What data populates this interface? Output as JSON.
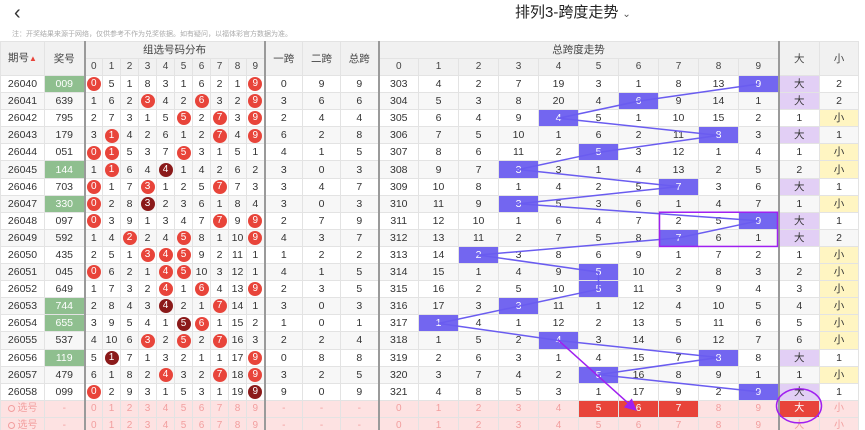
{
  "header": {
    "back_icon": "chevron-left-icon",
    "title": "排列3-跨度走势",
    "title_chevron_icon": "chevron-down-icon"
  },
  "notice": "注：开奖结果来源于网络，仅供参考不作为兑奖依据。如有疑问，以福体彩官方数据为准。",
  "columns": {
    "issue": "期号",
    "prize": "奖号",
    "digit_group": "组选号码分布",
    "span1": "一跨",
    "span2": "二跨",
    "total_span": "总跨",
    "trend_group": "总跨度走势",
    "big": "大",
    "small": "小",
    "digits": [
      "0",
      "1",
      "2",
      "3",
      "4",
      "5",
      "6",
      "7",
      "8",
      "9"
    ],
    "trend_digits": [
      "0",
      "1",
      "2",
      "3",
      "4",
      "5",
      "6",
      "7",
      "8",
      "9"
    ]
  },
  "colors": {
    "hit": "#7366f0",
    "ball": "#e8443a",
    "ball_dark": "#8b1a1a",
    "big_bg": "#e2cff5",
    "small_bg": "#fff5c2",
    "annotation": "#a020f0"
  },
  "rows": [
    {
      "issue": "26040",
      "prize": "009",
      "hl": true,
      "dg": [
        "0",
        "5",
        "1",
        "8",
        "3",
        "1",
        "6",
        "2",
        "1",
        "9"
      ],
      "balls": {
        "0": "r",
        "9": "r"
      },
      "s1": "0",
      "s2": "9",
      "ts": "9",
      "trend": [
        "303",
        "4",
        "2",
        "7",
        "19",
        "3",
        "1",
        "8",
        "13",
        "9"
      ],
      "bs": "big"
    },
    {
      "issue": "26041",
      "prize": "639",
      "hl": false,
      "dg": [
        "1",
        "6",
        "2",
        "3",
        "4",
        "2",
        "6",
        "3",
        "2",
        "9"
      ],
      "balls": {
        "3": "r",
        "6": "r",
        "9": "r"
      },
      "s1": "3",
      "s2": "6",
      "ts": "6",
      "trend": [
        "304",
        "5",
        "3",
        "8",
        "20",
        "4",
        "6",
        "9",
        "14",
        "1"
      ],
      "bs": "big"
    },
    {
      "issue": "26042",
      "prize": "795",
      "hl": false,
      "dg": [
        "2",
        "7",
        "3",
        "1",
        "5",
        "5",
        "2",
        "7",
        "3",
        "9"
      ],
      "balls": {
        "5": "r",
        "7": "r",
        "9": "r"
      },
      "s1": "2",
      "s2": "4",
      "ts": "4",
      "trend": [
        "305",
        "6",
        "4",
        "9",
        "4",
        "5",
        "1",
        "10",
        "15",
        "2"
      ],
      "bs": "small"
    },
    {
      "issue": "26043",
      "prize": "179",
      "hl": false,
      "dg": [
        "3",
        "1",
        "4",
        "2",
        "6",
        "1",
        "2",
        "7",
        "4",
        "9"
      ],
      "balls": {
        "1": "r",
        "7": "r",
        "9": "r"
      },
      "s1": "6",
      "s2": "2",
      "ts": "8",
      "trend": [
        "306",
        "7",
        "5",
        "10",
        "1",
        "6",
        "2",
        "11",
        "8",
        "3"
      ],
      "bs": "big"
    },
    {
      "issue": "26044",
      "prize": "051",
      "hl": false,
      "dg": [
        "0",
        "1",
        "5",
        "3",
        "7",
        "5",
        "3",
        "1",
        "5",
        "1"
      ],
      "balls": {
        "0": "r",
        "1": "r",
        "5": "r"
      },
      "s1": "4",
      "s2": "1",
      "ts": "5",
      "trend": [
        "307",
        "8",
        "6",
        "11",
        "2",
        "5",
        "3",
        "12",
        "1",
        "4"
      ],
      "bs": "small"
    },
    {
      "issue": "26045",
      "prize": "144",
      "hl": true,
      "dg": [
        "1",
        "1",
        "6",
        "4",
        "4",
        "1",
        "4",
        "2",
        "6",
        "2"
      ],
      "balls": {
        "1": "r",
        "4": "d"
      },
      "s1": "3",
      "s2": "0",
      "ts": "3",
      "trend": [
        "308",
        "9",
        "7",
        "3",
        "3",
        "1",
        "4",
        "13",
        "2",
        "5"
      ],
      "bs": "small"
    },
    {
      "issue": "26046",
      "prize": "703",
      "hl": false,
      "dg": [
        "0",
        "1",
        "7",
        "3",
        "1",
        "2",
        "5",
        "7",
        "7",
        "3"
      ],
      "balls": {
        "0": "r",
        "3": "r",
        "7": "r"
      },
      "s1": "3",
      "s2": "4",
      "ts": "7",
      "trend": [
        "309",
        "10",
        "8",
        "1",
        "4",
        "2",
        "5",
        "7",
        "3",
        "6"
      ],
      "bs": "big"
    },
    {
      "issue": "26047",
      "prize": "330",
      "hl": true,
      "dg": [
        "0",
        "2",
        "8",
        "3",
        "2",
        "3",
        "6",
        "1",
        "8",
        "4"
      ],
      "balls": {
        "0": "r",
        "3": "d"
      },
      "s1": "3",
      "s2": "0",
      "ts": "3",
      "trend": [
        "310",
        "11",
        "9",
        "3",
        "5",
        "3",
        "6",
        "1",
        "4",
        "7"
      ],
      "bs": "small"
    },
    {
      "issue": "26048",
      "prize": "097",
      "hl": false,
      "dg": [
        "0",
        "3",
        "9",
        "1",
        "3",
        "4",
        "7",
        "7",
        "9",
        "9"
      ],
      "balls": {
        "0": "r",
        "7": "r",
        "9": "r"
      },
      "s1": "2",
      "s2": "7",
      "ts": "9",
      "trend": [
        "311",
        "12",
        "10",
        "1",
        "6",
        "4",
        "7",
        "2",
        "5",
        "9"
      ],
      "bs": "big"
    },
    {
      "issue": "26049",
      "prize": "592",
      "hl": false,
      "dg": [
        "1",
        "4",
        "2",
        "2",
        "4",
        "5",
        "8",
        "1",
        "10",
        "9"
      ],
      "balls": {
        "2": "r",
        "5": "r",
        "9": "r"
      },
      "s1": "4",
      "s2": "3",
      "ts": "7",
      "trend": [
        "312",
        "13",
        "11",
        "2",
        "7",
        "5",
        "8",
        "7",
        "6",
        "1"
      ],
      "bs": "big"
    },
    {
      "issue": "26050",
      "prize": "435",
      "hl": false,
      "dg": [
        "2",
        "5",
        "1",
        "3",
        "4",
        "5",
        "9",
        "2",
        "11",
        "1"
      ],
      "balls": {
        "3": "r",
        "4": "r",
        "5": "r"
      },
      "s1": "1",
      "s2": "2",
      "ts": "2",
      "trend": [
        "313",
        "14",
        "2",
        "3",
        "8",
        "6",
        "9",
        "1",
        "7",
        "2"
      ],
      "bs": "small"
    },
    {
      "issue": "26051",
      "prize": "045",
      "hl": false,
      "dg": [
        "0",
        "6",
        "2",
        "1",
        "4",
        "5",
        "10",
        "3",
        "12",
        "1"
      ],
      "balls": {
        "0": "r",
        "4": "r",
        "5": "r"
      },
      "s1": "4",
      "s2": "1",
      "ts": "5",
      "trend": [
        "314",
        "15",
        "1",
        "4",
        "9",
        "5",
        "10",
        "2",
        "8",
        "3"
      ],
      "bs": "small"
    },
    {
      "issue": "26052",
      "prize": "649",
      "hl": false,
      "dg": [
        "1",
        "7",
        "3",
        "2",
        "4",
        "1",
        "6",
        "4",
        "13",
        "9"
      ],
      "balls": {
        "4": "r",
        "6": "r",
        "9": "r"
      },
      "s1": "2",
      "s2": "3",
      "ts": "5",
      "trend": [
        "315",
        "16",
        "2",
        "5",
        "10",
        "5",
        "11",
        "3",
        "9",
        "4"
      ],
      "bs": "small"
    },
    {
      "issue": "26053",
      "prize": "744",
      "hl": true,
      "dg": [
        "2",
        "8",
        "4",
        "3",
        "4",
        "2",
        "1",
        "7",
        "14",
        "1"
      ],
      "balls": {
        "4": "d",
        "7": "r"
      },
      "s1": "3",
      "s2": "0",
      "ts": "3",
      "trend": [
        "316",
        "17",
        "3",
        "3",
        "11",
        "1",
        "12",
        "4",
        "10",
        "5"
      ],
      "bs": "small"
    },
    {
      "issue": "26054",
      "prize": "655",
      "hl": true,
      "dg": [
        "3",
        "9",
        "5",
        "4",
        "1",
        "5",
        "6",
        "1",
        "15",
        "2"
      ],
      "balls": {
        "5": "d",
        "6": "r"
      },
      "s1": "1",
      "s2": "0",
      "ts": "1",
      "trend": [
        "317",
        "1",
        "4",
        "1",
        "12",
        "2",
        "13",
        "5",
        "11",
        "6"
      ],
      "bs": "small"
    },
    {
      "issue": "26055",
      "prize": "537",
      "hl": false,
      "dg": [
        "4",
        "10",
        "6",
        "3",
        "2",
        "5",
        "2",
        "7",
        "16",
        "3"
      ],
      "balls": {
        "3": "r",
        "5": "r",
        "7": "r"
      },
      "s1": "2",
      "s2": "2",
      "ts": "4",
      "trend": [
        "318",
        "1",
        "5",
        "2",
        "4",
        "3",
        "14",
        "6",
        "12",
        "7"
      ],
      "bs": "small"
    },
    {
      "issue": "26056",
      "prize": "119",
      "hl": true,
      "dg": [
        "5",
        "1",
        "7",
        "1",
        "3",
        "2",
        "1",
        "1",
        "17",
        "9"
      ],
      "balls": {
        "1": "d",
        "9": "r"
      },
      "s1": "0",
      "s2": "8",
      "ts": "8",
      "trend": [
        "319",
        "2",
        "6",
        "3",
        "1",
        "4",
        "15",
        "7",
        "8",
        "8"
      ],
      "bs": "big"
    },
    {
      "issue": "26057",
      "prize": "479",
      "hl": false,
      "dg": [
        "6",
        "1",
        "8",
        "2",
        "4",
        "3",
        "2",
        "7",
        "18",
        "9"
      ],
      "balls": {
        "4": "r",
        "7": "r",
        "9": "r"
      },
      "s1": "3",
      "s2": "2",
      "ts": "5",
      "trend": [
        "320",
        "3",
        "7",
        "4",
        "2",
        "5",
        "16",
        "8",
        "9",
        "1"
      ],
      "bs": "small"
    },
    {
      "issue": "26058",
      "prize": "099",
      "hl": false,
      "dg": [
        "0",
        "2",
        "9",
        "3",
        "1",
        "5",
        "3",
        "1",
        "19",
        "9"
      ],
      "balls": {
        "0": "r",
        "9": "d"
      },
      "s1": "9",
      "s2": "0",
      "ts": "9",
      "trend": [
        "321",
        "4",
        "8",
        "5",
        "3",
        "1",
        "17",
        "9",
        "2",
        "9"
      ],
      "bs": "big"
    }
  ],
  "select_row": {
    "label": "选号",
    "prize": "-",
    "digits": [
      "0",
      "1",
      "2",
      "3",
      "4",
      "5",
      "6",
      "7",
      "8",
      "9"
    ],
    "s1": "-",
    "s2": "-",
    "ts": "-",
    "trend": [
      "0",
      "1",
      "2",
      "3",
      "4",
      "5",
      "6",
      "7",
      "8",
      "9"
    ],
    "big": "大",
    "small": "小",
    "red_trend": [
      "5",
      "6",
      "7"
    ],
    "big_selected": true
  },
  "select_row2": {
    "label": "选号",
    "prize": "-",
    "digits": [
      "0",
      "1",
      "2",
      "3",
      "4",
      "5",
      "6",
      "7",
      "8",
      "9"
    ],
    "s1": "-",
    "s2": "-",
    "ts": "-",
    "trend": [
      "0",
      "1",
      "2",
      "3",
      "4",
      "5",
      "6",
      "7",
      "8",
      "9"
    ],
    "big": "大",
    "small": "小"
  }
}
